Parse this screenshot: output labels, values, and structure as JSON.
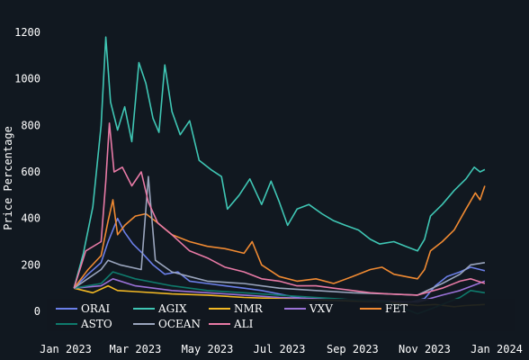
{
  "chart_data": {
    "type": "line",
    "title": "",
    "xlabel": "",
    "ylabel": "Price Percentage",
    "xlim": [
      "2023-01-01",
      "2024-01-01"
    ],
    "ylim": [
      0,
      1250
    ],
    "y_ticks": [
      0,
      200,
      400,
      600,
      800,
      1000,
      1200
    ],
    "x_ticks": [
      {
        "date": "2023-01-01",
        "label": "Jan 2023"
      },
      {
        "date": "2023-03-01",
        "label": "Mar 2023"
      },
      {
        "date": "2023-05-01",
        "label": "May 2023"
      },
      {
        "date": "2023-07-01",
        "label": "Jul 2023"
      },
      {
        "date": "2023-09-01",
        "label": "Sep 2023"
      },
      {
        "date": "2023-11-01",
        "label": "Nov 2023"
      },
      {
        "date": "2024-01-01",
        "label": "Jan 2024"
      }
    ],
    "grid": false,
    "background": "#111820",
    "legend_position": "bottom-inside",
    "series": [
      {
        "name": "ORAI",
        "color": "#6b7fe8",
        "points": [
          [
            "2023-01-08",
            100
          ],
          [
            "2023-01-20",
            160
          ],
          [
            "2023-01-31",
            210
          ],
          [
            "2023-02-06",
            300
          ],
          [
            "2023-02-14",
            400
          ],
          [
            "2023-02-20",
            340
          ],
          [
            "2023-02-27",
            290
          ],
          [
            "2023-03-07",
            250
          ],
          [
            "2023-03-16",
            200
          ],
          [
            "2023-03-26",
            160
          ],
          [
            "2023-04-06",
            170
          ],
          [
            "2023-04-16",
            130
          ],
          [
            "2023-05-01",
            120
          ],
          [
            "2023-05-16",
            110
          ],
          [
            "2023-06-01",
            100
          ],
          [
            "2023-06-16",
            90
          ],
          [
            "2023-07-01",
            75
          ],
          [
            "2023-07-16",
            60
          ],
          [
            "2023-08-01",
            50
          ],
          [
            "2023-09-01",
            45
          ],
          [
            "2023-10-01",
            40
          ],
          [
            "2023-10-20",
            40
          ],
          [
            "2023-11-01",
            55
          ],
          [
            "2023-11-10",
            110
          ],
          [
            "2023-11-20",
            150
          ],
          [
            "2023-12-01",
            170
          ],
          [
            "2023-12-10",
            190
          ],
          [
            "2023-12-18",
            180
          ],
          [
            "2023-12-22",
            175
          ]
        ]
      },
      {
        "name": "AGIX",
        "color": "#3fc6b4",
        "points": [
          [
            "2023-01-08",
            100
          ],
          [
            "2023-01-16",
            250
          ],
          [
            "2023-01-24",
            450
          ],
          [
            "2023-01-31",
            800
          ],
          [
            "2023-02-04",
            1180
          ],
          [
            "2023-02-08",
            900
          ],
          [
            "2023-02-14",
            780
          ],
          [
            "2023-02-20",
            880
          ],
          [
            "2023-02-26",
            730
          ],
          [
            "2023-03-04",
            1070
          ],
          [
            "2023-03-10",
            980
          ],
          [
            "2023-03-16",
            830
          ],
          [
            "2023-03-21",
            770
          ],
          [
            "2023-03-26",
            1060
          ],
          [
            "2023-04-01",
            860
          ],
          [
            "2023-04-08",
            760
          ],
          [
            "2023-04-16",
            820
          ],
          [
            "2023-04-24",
            650
          ],
          [
            "2023-05-04",
            610
          ],
          [
            "2023-05-13",
            580
          ],
          [
            "2023-05-18",
            440
          ],
          [
            "2023-05-28",
            500
          ],
          [
            "2023-06-06",
            570
          ],
          [
            "2023-06-16",
            460
          ],
          [
            "2023-06-24",
            560
          ],
          [
            "2023-07-01",
            470
          ],
          [
            "2023-07-08",
            370
          ],
          [
            "2023-07-16",
            440
          ],
          [
            "2023-07-26",
            460
          ],
          [
            "2023-08-06",
            420
          ],
          [
            "2023-08-16",
            390
          ],
          [
            "2023-08-26",
            370
          ],
          [
            "2023-09-06",
            350
          ],
          [
            "2023-09-16",
            310
          ],
          [
            "2023-09-24",
            290
          ],
          [
            "2023-10-06",
            300
          ],
          [
            "2023-10-16",
            280
          ],
          [
            "2023-10-26",
            260
          ],
          [
            "2023-11-01",
            310
          ],
          [
            "2023-11-06",
            410
          ],
          [
            "2023-11-16",
            460
          ],
          [
            "2023-11-26",
            520
          ],
          [
            "2023-12-06",
            570
          ],
          [
            "2023-12-13",
            620
          ],
          [
            "2023-12-18",
            600
          ],
          [
            "2023-12-22",
            610
          ]
        ]
      },
      {
        "name": "NMR",
        "color": "#f2b824",
        "points": [
          [
            "2023-01-08",
            100
          ],
          [
            "2023-01-24",
            80
          ],
          [
            "2023-02-06",
            110
          ],
          [
            "2023-02-14",
            90
          ],
          [
            "2023-03-01",
            85
          ],
          [
            "2023-04-01",
            75
          ],
          [
            "2023-05-01",
            70
          ],
          [
            "2023-06-01",
            60
          ],
          [
            "2023-07-01",
            55
          ],
          [
            "2023-08-01",
            50
          ],
          [
            "2023-09-01",
            45
          ],
          [
            "2023-10-01",
            40
          ],
          [
            "2023-10-26",
            25
          ],
          [
            "2023-11-10",
            30
          ],
          [
            "2023-11-26",
            20
          ],
          [
            "2023-12-06",
            25
          ],
          [
            "2023-12-22",
            30
          ]
        ]
      },
      {
        "name": "VXV",
        "color": "#9b72d8",
        "points": [
          [
            "2023-01-08",
            100
          ],
          [
            "2023-01-31",
            110
          ],
          [
            "2023-02-10",
            140
          ],
          [
            "2023-03-01",
            110
          ],
          [
            "2023-04-01",
            90
          ],
          [
            "2023-05-01",
            80
          ],
          [
            "2023-06-01",
            70
          ],
          [
            "2023-07-01",
            60
          ],
          [
            "2023-08-01",
            55
          ],
          [
            "2023-09-01",
            50
          ],
          [
            "2023-10-01",
            45
          ],
          [
            "2023-10-26",
            40
          ],
          [
            "2023-11-16",
            70
          ],
          [
            "2023-12-01",
            90
          ],
          [
            "2023-12-22",
            130
          ]
        ]
      },
      {
        "name": "FET",
        "color": "#f08a32",
        "points": [
          [
            "2023-01-08",
            100
          ],
          [
            "2023-01-20",
            180
          ],
          [
            "2023-01-31",
            240
          ],
          [
            "2023-02-06",
            390
          ],
          [
            "2023-02-10",
            480
          ],
          [
            "2023-02-14",
            330
          ],
          [
            "2023-02-20",
            370
          ],
          [
            "2023-03-01",
            410
          ],
          [
            "2023-03-10",
            420
          ],
          [
            "2023-03-20",
            380
          ],
          [
            "2023-04-01",
            330
          ],
          [
            "2023-04-16",
            300
          ],
          [
            "2023-05-01",
            280
          ],
          [
            "2023-05-16",
            270
          ],
          [
            "2023-06-01",
            250
          ],
          [
            "2023-06-08",
            300
          ],
          [
            "2023-06-16",
            200
          ],
          [
            "2023-07-01",
            150
          ],
          [
            "2023-07-16",
            130
          ],
          [
            "2023-08-01",
            140
          ],
          [
            "2023-08-16",
            120
          ],
          [
            "2023-09-01",
            150
          ],
          [
            "2023-09-16",
            180
          ],
          [
            "2023-09-26",
            190
          ],
          [
            "2023-10-06",
            160
          ],
          [
            "2023-10-16",
            150
          ],
          [
            "2023-10-26",
            140
          ],
          [
            "2023-11-01",
            180
          ],
          [
            "2023-11-06",
            260
          ],
          [
            "2023-11-16",
            300
          ],
          [
            "2023-11-26",
            350
          ],
          [
            "2023-12-06",
            440
          ],
          [
            "2023-12-14",
            510
          ],
          [
            "2023-12-18",
            480
          ],
          [
            "2023-12-22",
            540
          ]
        ]
      },
      {
        "name": "ASTO",
        "color": "#0f7a6c",
        "points": [
          [
            "2023-01-08",
            100
          ],
          [
            "2023-01-31",
            120
          ],
          [
            "2023-02-10",
            170
          ],
          [
            "2023-03-01",
            140
          ],
          [
            "2023-04-01",
            110
          ],
          [
            "2023-05-01",
            90
          ],
          [
            "2023-06-01",
            80
          ],
          [
            "2023-07-01",
            70
          ],
          [
            "2023-08-01",
            60
          ],
          [
            "2023-09-01",
            50
          ],
          [
            "2023-10-01",
            40
          ],
          [
            "2023-10-26",
            -10
          ],
          [
            "2023-11-06",
            10
          ],
          [
            "2023-11-16",
            30
          ],
          [
            "2023-12-01",
            60
          ],
          [
            "2023-12-10",
            90
          ],
          [
            "2023-12-22",
            80
          ]
        ]
      },
      {
        "name": "OCEAN",
        "color": "#9aa5bd",
        "points": [
          [
            "2023-01-08",
            100
          ],
          [
            "2023-01-31",
            180
          ],
          [
            "2023-02-06",
            220
          ],
          [
            "2023-02-16",
            200
          ],
          [
            "2023-03-06",
            180
          ],
          [
            "2023-03-12",
            580
          ],
          [
            "2023-03-18",
            220
          ],
          [
            "2023-04-01",
            170
          ],
          [
            "2023-04-16",
            150
          ],
          [
            "2023-05-01",
            130
          ],
          [
            "2023-06-01",
            120
          ],
          [
            "2023-07-01",
            100
          ],
          [
            "2023-08-01",
            90
          ],
          [
            "2023-09-01",
            80
          ],
          [
            "2023-10-01",
            75
          ],
          [
            "2023-10-26",
            70
          ],
          [
            "2023-11-16",
            120
          ],
          [
            "2023-12-01",
            160
          ],
          [
            "2023-12-10",
            200
          ],
          [
            "2023-12-22",
            210
          ]
        ]
      },
      {
        "name": "ALI",
        "color": "#e87aa6",
        "points": [
          [
            "2023-01-08",
            100
          ],
          [
            "2023-01-18",
            260
          ],
          [
            "2023-01-31",
            300
          ],
          [
            "2023-02-04",
            560
          ],
          [
            "2023-02-07",
            810
          ],
          [
            "2023-02-11",
            600
          ],
          [
            "2023-02-18",
            620
          ],
          [
            "2023-02-26",
            540
          ],
          [
            "2023-03-06",
            600
          ],
          [
            "2023-03-12",
            470
          ],
          [
            "2023-03-20",
            380
          ],
          [
            "2023-04-01",
            330
          ],
          [
            "2023-04-16",
            260
          ],
          [
            "2023-05-01",
            230
          ],
          [
            "2023-05-16",
            190
          ],
          [
            "2023-06-01",
            170
          ],
          [
            "2023-06-16",
            140
          ],
          [
            "2023-07-01",
            130
          ],
          [
            "2023-07-16",
            110
          ],
          [
            "2023-08-01",
            110
          ],
          [
            "2023-08-16",
            100
          ],
          [
            "2023-09-01",
            90
          ],
          [
            "2023-09-16",
            80
          ],
          [
            "2023-10-01",
            75
          ],
          [
            "2023-10-26",
            70
          ],
          [
            "2023-11-16",
            100
          ],
          [
            "2023-12-01",
            130
          ],
          [
            "2023-12-10",
            140
          ],
          [
            "2023-12-22",
            120
          ]
        ]
      }
    ]
  }
}
